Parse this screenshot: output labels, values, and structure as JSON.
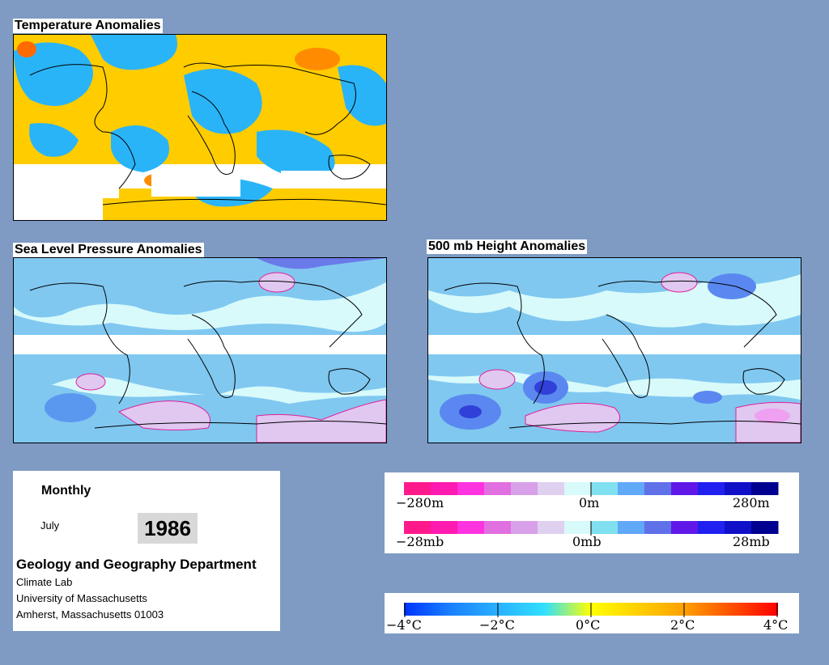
{
  "panels": {
    "temperature": {
      "title": "Temperature Anomalies"
    },
    "slp": {
      "title": "Sea Level Pressure Anomalies"
    },
    "height500": {
      "title": "500 mb Height Anomalies"
    }
  },
  "info": {
    "mode": "Monthly",
    "month": "July",
    "year": "1986",
    "department": "Geology and Geography Department",
    "address": [
      "Climate Lab",
      "University of Massachusetts",
      "Amherst, Massachusetts 01003"
    ]
  },
  "scales": {
    "height": {
      "min": "−280m",
      "mid": "0m",
      "max": "280m"
    },
    "pressure": {
      "min": "−28mb",
      "mid": "0mb",
      "max": "28mb"
    },
    "temperature": {
      "labels": [
        "−4°C",
        "−2°C",
        "0°C",
        "2°C",
        "4°C"
      ]
    }
  },
  "colors": {
    "background": "#7f9bc4",
    "anomaly_scale": [
      "#ff1a8c",
      "#ff1ab0",
      "#ff33e0",
      "#e070e0",
      "#d8a0e8",
      "#e0d0f0",
      "#d8fafa",
      "#80e0f0",
      "#60a8f8",
      "#6070e8",
      "#6018e8",
      "#2020f0",
      "#1010c8",
      "#000090"
    ],
    "temperature_scale": [
      "#0033ff",
      "#1a80ff",
      "#2ab0ff",
      "#30e0ff",
      "#ffff00",
      "#ffd000",
      "#ffa000",
      "#ff5000",
      "#ff0000"
    ]
  }
}
